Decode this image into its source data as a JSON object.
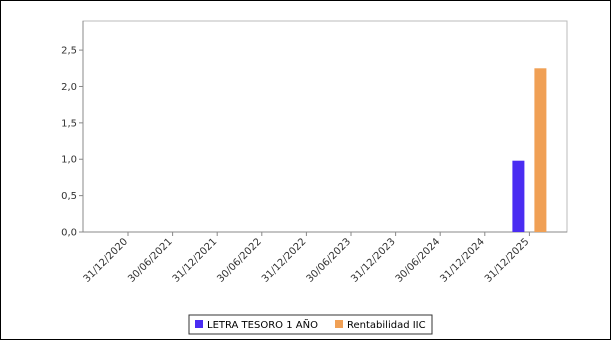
{
  "chart_data": {
    "type": "bar",
    "categories": [
      "31/12/2020",
      "30/06/2021",
      "31/12/2021",
      "30/06/2022",
      "31/12/2022",
      "30/06/2023",
      "31/12/2023",
      "30/06/2024",
      "31/12/2024",
      "31/12/2025"
    ],
    "series": [
      {
        "name": "LETRA TESORO 1 AÑO",
        "color": "#4a2cf2",
        "values": [
          null,
          null,
          null,
          null,
          null,
          null,
          null,
          null,
          null,
          0.98
        ]
      },
      {
        "name": "Rentabilidad IIC",
        "color": "#f0a055",
        "values": [
          null,
          null,
          null,
          null,
          null,
          null,
          null,
          null,
          null,
          2.25
        ]
      }
    ],
    "y_ticks": [
      "0,0",
      "0,5",
      "1,0",
      "1,5",
      "2,0",
      "2,5"
    ],
    "ylim": [
      0,
      2.9
    ],
    "grid": false,
    "legend_position": "bottom"
  }
}
